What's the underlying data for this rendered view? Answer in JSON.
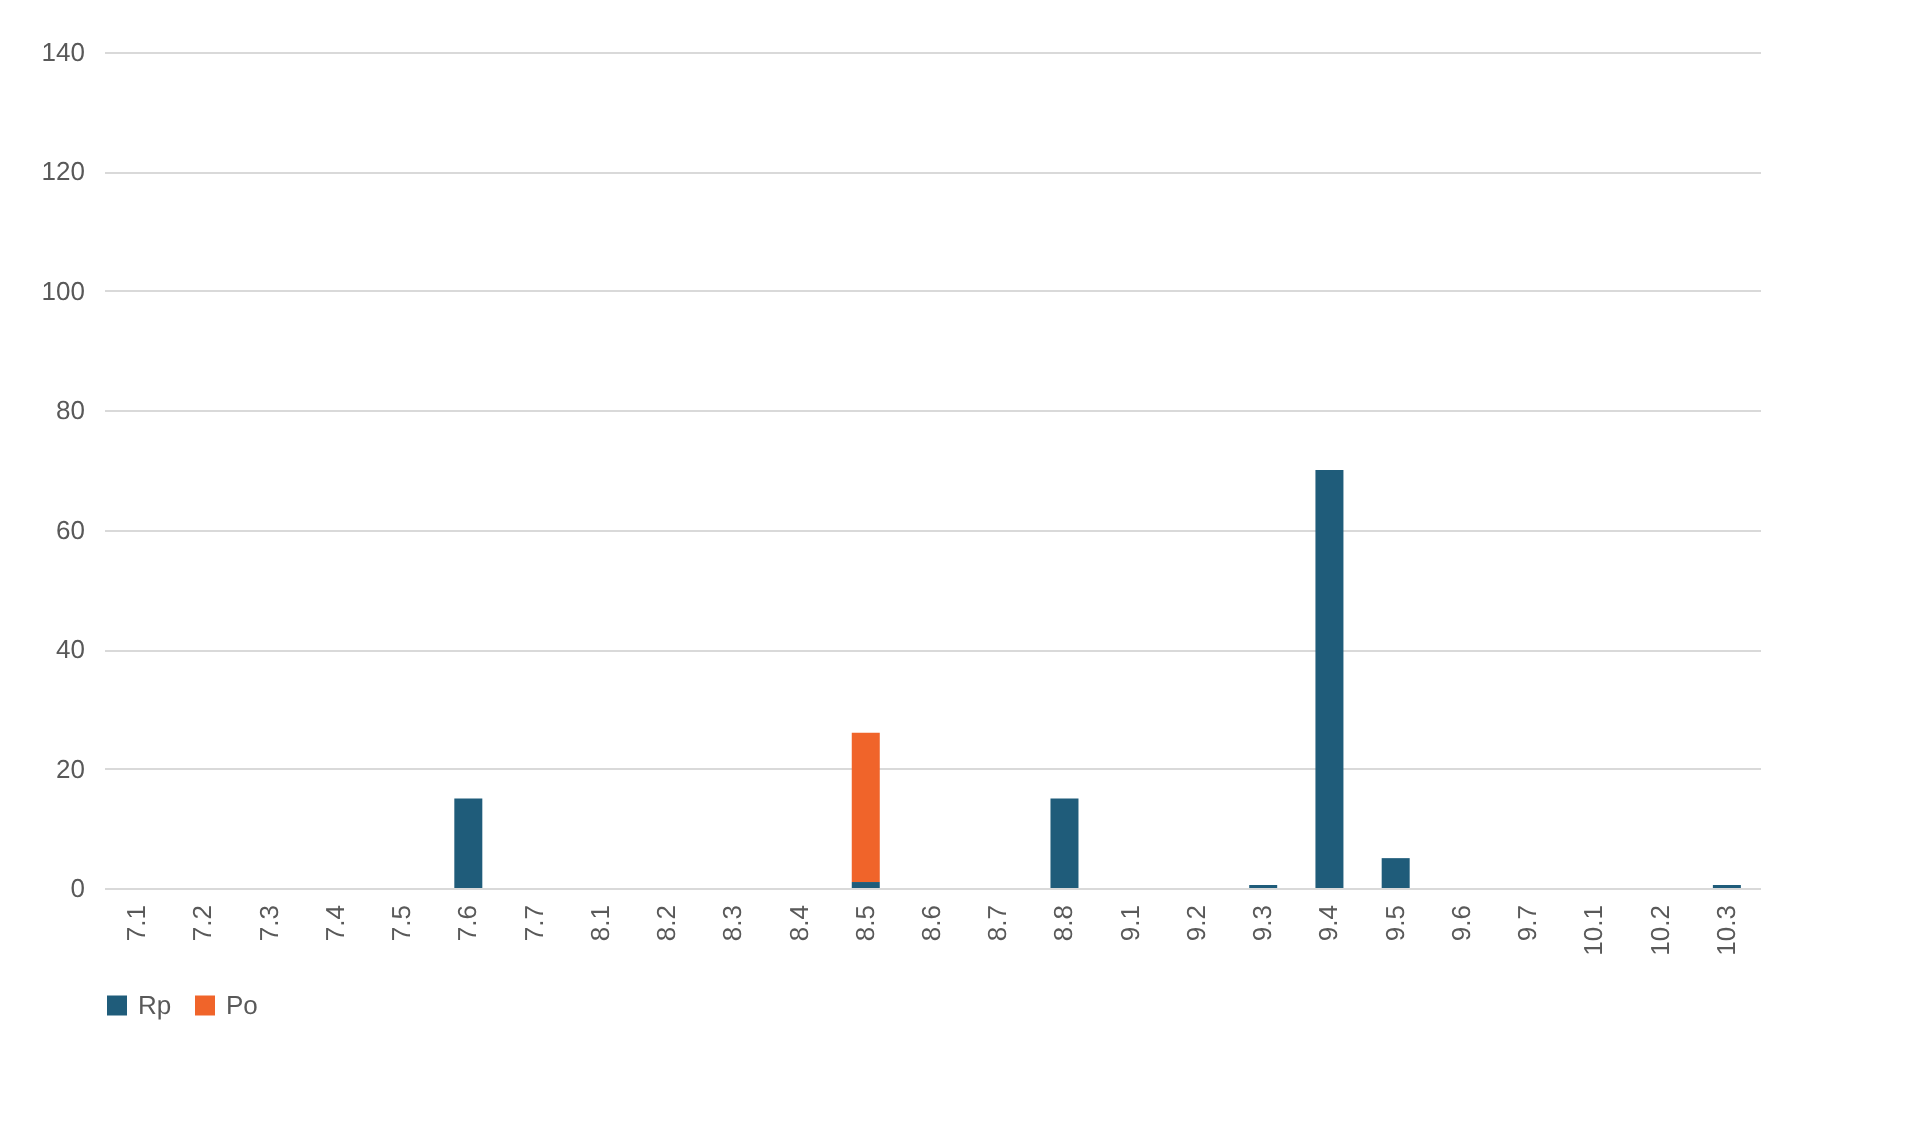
{
  "chart_data": {
    "type": "bar",
    "stacked": true,
    "categories": [
      "7.1",
      "7.2",
      "7.3",
      "7.4",
      "7.5",
      "7.6",
      "7.7",
      "8.1",
      "8.2",
      "8.3",
      "8.4",
      "8.5",
      "8.6",
      "8.7",
      "8.8",
      "9.1",
      "9.2",
      "9.3",
      "9.4",
      "9.5",
      "9.6",
      "9.7",
      "10.1",
      "10.2",
      "10.3"
    ],
    "series": [
      {
        "name": "Rp",
        "color": "#1f5c7a",
        "values": [
          0,
          0,
          0,
          0,
          0,
          15,
          0,
          0,
          0,
          0,
          0,
          1,
          0,
          0,
          15,
          0,
          0,
          0.5,
          70,
          5,
          0,
          0,
          0,
          0,
          0.5
        ]
      },
      {
        "name": "Po",
        "color": "#f0642a",
        "values": [
          0,
          0,
          0,
          0,
          0,
          0,
          0,
          0,
          0,
          0,
          0,
          25,
          0,
          0,
          0,
          0,
          0,
          0,
          0,
          0,
          0,
          0,
          0,
          0,
          0
        ]
      }
    ],
    "ylim": [
      0,
      140
    ],
    "yticks": [
      0,
      20,
      40,
      60,
      80,
      100,
      120,
      140
    ],
    "grid": "y",
    "legend": "bottom"
  }
}
